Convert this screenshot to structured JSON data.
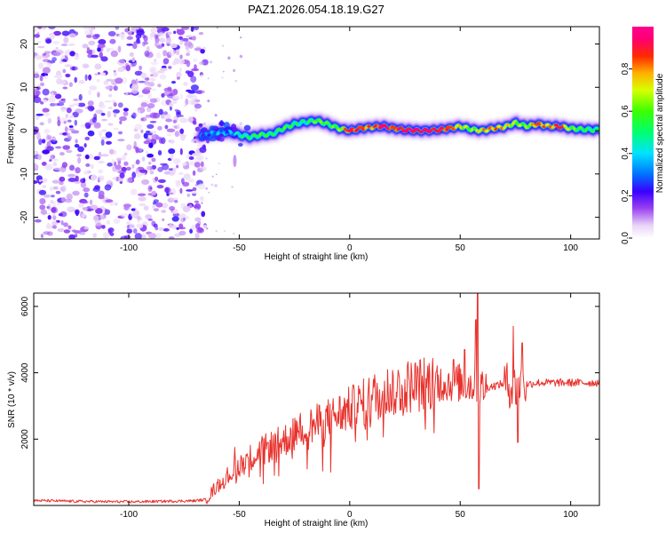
{
  "chart_data": [
    {
      "type": "heatmap",
      "title": "PAZ1.2026.054.18.19.G27",
      "xlabel": "Height of straight line (km)",
      "ylabel": "Frequency (Hz)",
      "xlim": [
        -143,
        113
      ],
      "ylim": [
        -25,
        24
      ],
      "x_ticks": [
        -100,
        -50,
        0,
        50,
        100
      ],
      "y_ticks": [
        -20,
        -10,
        0,
        10,
        20
      ],
      "noise_region_x": [
        -143,
        -67
      ],
      "ridge": {
        "x": [
          -67,
          -60,
          -55,
          -50,
          -45,
          -40,
          -35,
          -30,
          -25,
          -20,
          -15,
          -10,
          -5,
          0,
          5,
          10,
          15,
          20,
          25,
          30,
          35,
          40,
          45,
          50,
          55,
          60,
          65,
          70,
          75,
          80,
          85,
          90,
          95,
          100,
          105,
          110,
          113
        ],
        "frequency": [
          -1.0,
          -0.5,
          -0.3,
          -1.0,
          -1.5,
          -1.0,
          -0.8,
          0.5,
          1.5,
          2.0,
          2.3,
          1.5,
          0.5,
          0.0,
          0.5,
          0.8,
          1.0,
          0.5,
          0.2,
          0.0,
          0.0,
          0.2,
          0.5,
          1.0,
          0.3,
          0.0,
          0.5,
          0.8,
          1.8,
          1.0,
          1.5,
          1.0,
          1.0,
          0.5,
          0.3,
          0.2,
          0.2
        ],
        "amplitude": [
          0.25,
          0.35,
          0.3,
          0.45,
          0.5,
          0.55,
          0.5,
          0.55,
          0.5,
          0.45,
          0.6,
          0.55,
          0.6,
          0.9,
          0.85,
          0.8,
          0.95,
          0.85,
          0.95,
          0.95,
          0.95,
          0.9,
          0.85,
          0.7,
          0.6,
          0.75,
          0.8,
          0.75,
          0.65,
          0.6,
          0.85,
          0.75,
          0.9,
          0.6,
          0.55,
          0.5,
          0.5
        ]
      },
      "colorbar": {
        "label": "Normalized spectral amplitude",
        "range": [
          0,
          1
        ],
        "ticks": [
          "0.0",
          "0.2",
          "0.4",
          "0.6",
          "0.8"
        ],
        "colormap": "hsv-rainbow (white-violet-blue-cyan-green-yellow-red-magenta)"
      }
    },
    {
      "type": "line",
      "xlabel": "Height of straight line (km)",
      "ylabel": "SNR (10 * v/v)",
      "xlim": [
        -143,
        113
      ],
      "ylim": [
        0,
        6400
      ],
      "x_ticks": [
        -100,
        -50,
        0,
        50,
        100
      ],
      "y_ticks": [
        2000,
        4000,
        6000
      ],
      "series": [
        {
          "name": "SNR",
          "color": "#e8322d",
          "x": [
            -143,
            -120,
            -100,
            -80,
            -70,
            -65,
            -60,
            -55,
            -50,
            -45,
            -40,
            -35,
            -30,
            -25,
            -20,
            -15,
            -10,
            -5,
            0,
            5,
            10,
            15,
            20,
            25,
            30,
            35,
            40,
            45,
            50,
            55,
            60,
            65,
            70,
            75,
            80,
            85,
            90,
            95,
            100,
            105,
            113
          ],
          "values": [
            150,
            120,
            110,
            130,
            140,
            180,
            600,
            900,
            1200,
            1450,
            1650,
            1800,
            1950,
            2150,
            2350,
            2450,
            2600,
            2750,
            2900,
            3050,
            3250,
            3400,
            3500,
            3580,
            3630,
            3680,
            3700,
            3710,
            3690,
            3650,
            3550,
            3600,
            3680,
            3550,
            3650,
            3700,
            3700,
            3700,
            3700,
            3700,
            3700
          ],
          "spikes": [
            {
              "x": -52,
              "value": 1750
            },
            {
              "x": 47,
              "value": 4400
            },
            {
              "x": 52,
              "value": 4700
            },
            {
              "x": 57,
              "value": 5600
            },
            {
              "x": 58,
              "value": 6450
            },
            {
              "x": 58.5,
              "value": 500
            },
            {
              "x": 74,
              "value": 5400
            },
            {
              "x": 76,
              "value": 1900
            },
            {
              "x": 78,
              "value": 4900
            }
          ]
        }
      ]
    }
  ]
}
